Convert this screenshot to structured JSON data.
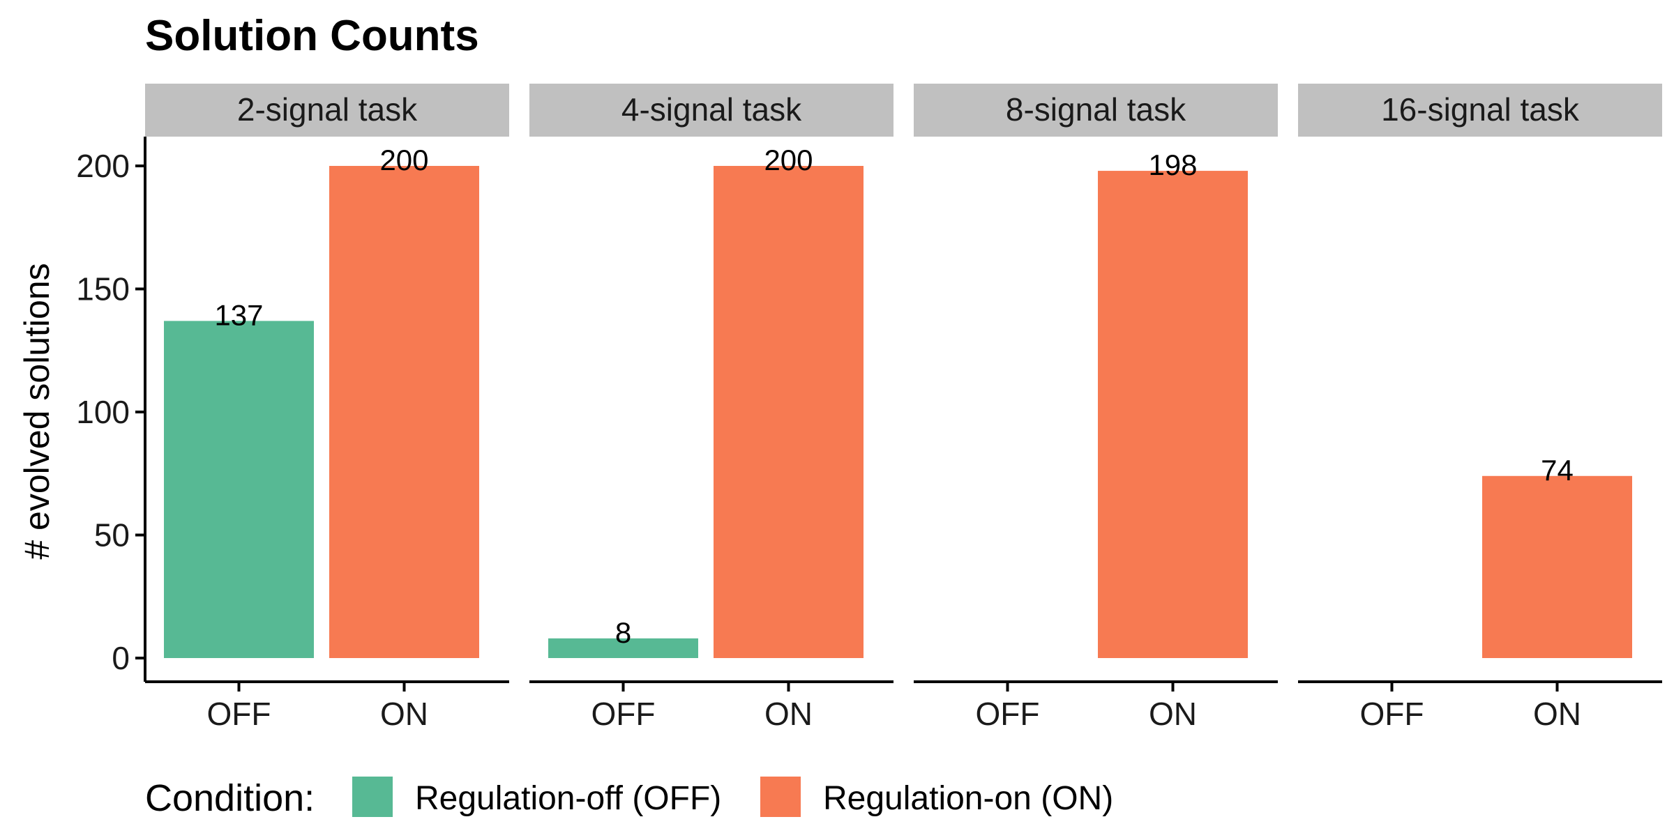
{
  "chart_data": {
    "type": "bar",
    "title": "Solution Counts",
    "ylabel": "# evolved solutions",
    "xlabel": "",
    "ylim": [
      0,
      210
    ],
    "yticks": [
      0,
      50,
      100,
      150,
      200
    ],
    "categories": [
      "OFF",
      "ON"
    ],
    "grid": false,
    "legend_position": "bottom-left",
    "legend_title": "Condition:",
    "series": [
      {
        "key": "OFF",
        "name": "Regulation-off (OFF)",
        "color": "#57b994"
      },
      {
        "key": "ON",
        "name": "Regulation-on (ON)",
        "color": "#f77a52"
      }
    ],
    "facets": [
      {
        "label": "2-signal task",
        "values": [
          137,
          200
        ]
      },
      {
        "label": "4-signal task",
        "values": [
          8,
          200
        ]
      },
      {
        "label": "8-signal task",
        "values": [
          null,
          198
        ]
      },
      {
        "label": "16-signal task",
        "values": [
          null,
          74
        ]
      }
    ],
    "strip_color": "#c0c0c0"
  }
}
